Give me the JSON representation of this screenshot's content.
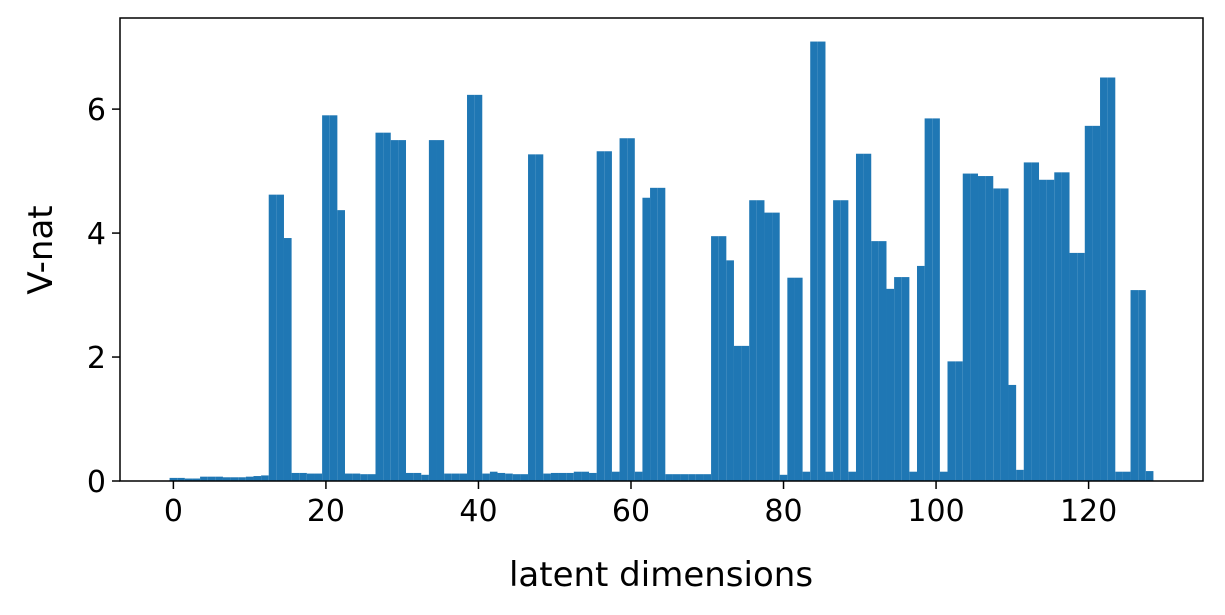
{
  "chart_data": {
    "type": "bar",
    "xlabel": "latent dimensions",
    "ylabel": "V-nat",
    "x": [
      0,
      1,
      2,
      3,
      4,
      5,
      6,
      7,
      8,
      9,
      10,
      11,
      12,
      13,
      14,
      15,
      16,
      17,
      18,
      19,
      20,
      21,
      22,
      23,
      24,
      25,
      26,
      27,
      28,
      29,
      30,
      31,
      32,
      33,
      34,
      35,
      36,
      37,
      38,
      39,
      40,
      41,
      42,
      43,
      44,
      45,
      46,
      47,
      48,
      49,
      50,
      51,
      52,
      53,
      54,
      55,
      56,
      57,
      58,
      59,
      60,
      61,
      62,
      63,
      64,
      65,
      66,
      67,
      68,
      69,
      70,
      71,
      72,
      73,
      74,
      75,
      76,
      77,
      78,
      79,
      80,
      81,
      82,
      83,
      84,
      85,
      86,
      87,
      88,
      89,
      90,
      91,
      92,
      93,
      94,
      95,
      96,
      97,
      98,
      99,
      100,
      101,
      102,
      103,
      104,
      105,
      106,
      107,
      108,
      109,
      110,
      111,
      112,
      113,
      114,
      115,
      116,
      117,
      118,
      119,
      120,
      121,
      122,
      123,
      124,
      125,
      126,
      127,
      128
    ],
    "values": [
      0.05,
      0.05,
      0.04,
      0.04,
      0.07,
      0.07,
      0.07,
      0.06,
      0.06,
      0.06,
      0.07,
      0.08,
      0.09,
      4.62,
      4.62,
      3.92,
      0.13,
      0.13,
      0.12,
      0.12,
      5.9,
      5.9,
      4.37,
      0.12,
      0.12,
      0.11,
      0.11,
      5.62,
      5.62,
      5.5,
      5.5,
      0.13,
      0.13,
      0.1,
      5.5,
      5.5,
      0.12,
      0.12,
      0.12,
      6.23,
      6.23,
      0.12,
      0.15,
      0.13,
      0.12,
      0.11,
      0.11,
      5.27,
      5.27,
      0.12,
      0.13,
      0.13,
      0.13,
      0.15,
      0.15,
      0.13,
      5.32,
      5.32,
      0.15,
      5.53,
      5.53,
      0.15,
      4.57,
      4.73,
      4.73,
      0.11,
      0.11,
      0.11,
      0.11,
      0.11,
      0.11,
      3.95,
      3.95,
      3.56,
      2.18,
      2.18,
      4.53,
      4.53,
      4.33,
      4.33,
      0.1,
      3.28,
      3.28,
      0.15,
      7.09,
      7.09,
      0.15,
      4.53,
      4.53,
      0.15,
      5.28,
      5.28,
      3.87,
      3.87,
      3.1,
      3.29,
      3.29,
      0.15,
      3.47,
      5.85,
      5.85,
      0.15,
      1.93,
      1.93,
      4.96,
      4.96,
      4.92,
      4.92,
      4.72,
      4.72,
      1.55,
      0.18,
      5.14,
      5.14,
      4.86,
      4.86,
      4.98,
      4.98,
      3.68,
      3.68,
      5.73,
      5.73,
      6.51,
      6.51,
      0.15,
      0.15,
      3.08,
      3.08,
      0.16
    ],
    "color": "#1f77b4",
    "xlim": [
      -7,
      135
    ],
    "xticks": [
      0,
      20,
      40,
      60,
      80,
      100,
      120
    ],
    "ylim": [
      0,
      7.47
    ],
    "yticks": [
      0,
      2,
      4,
      6
    ],
    "grid": false
  }
}
